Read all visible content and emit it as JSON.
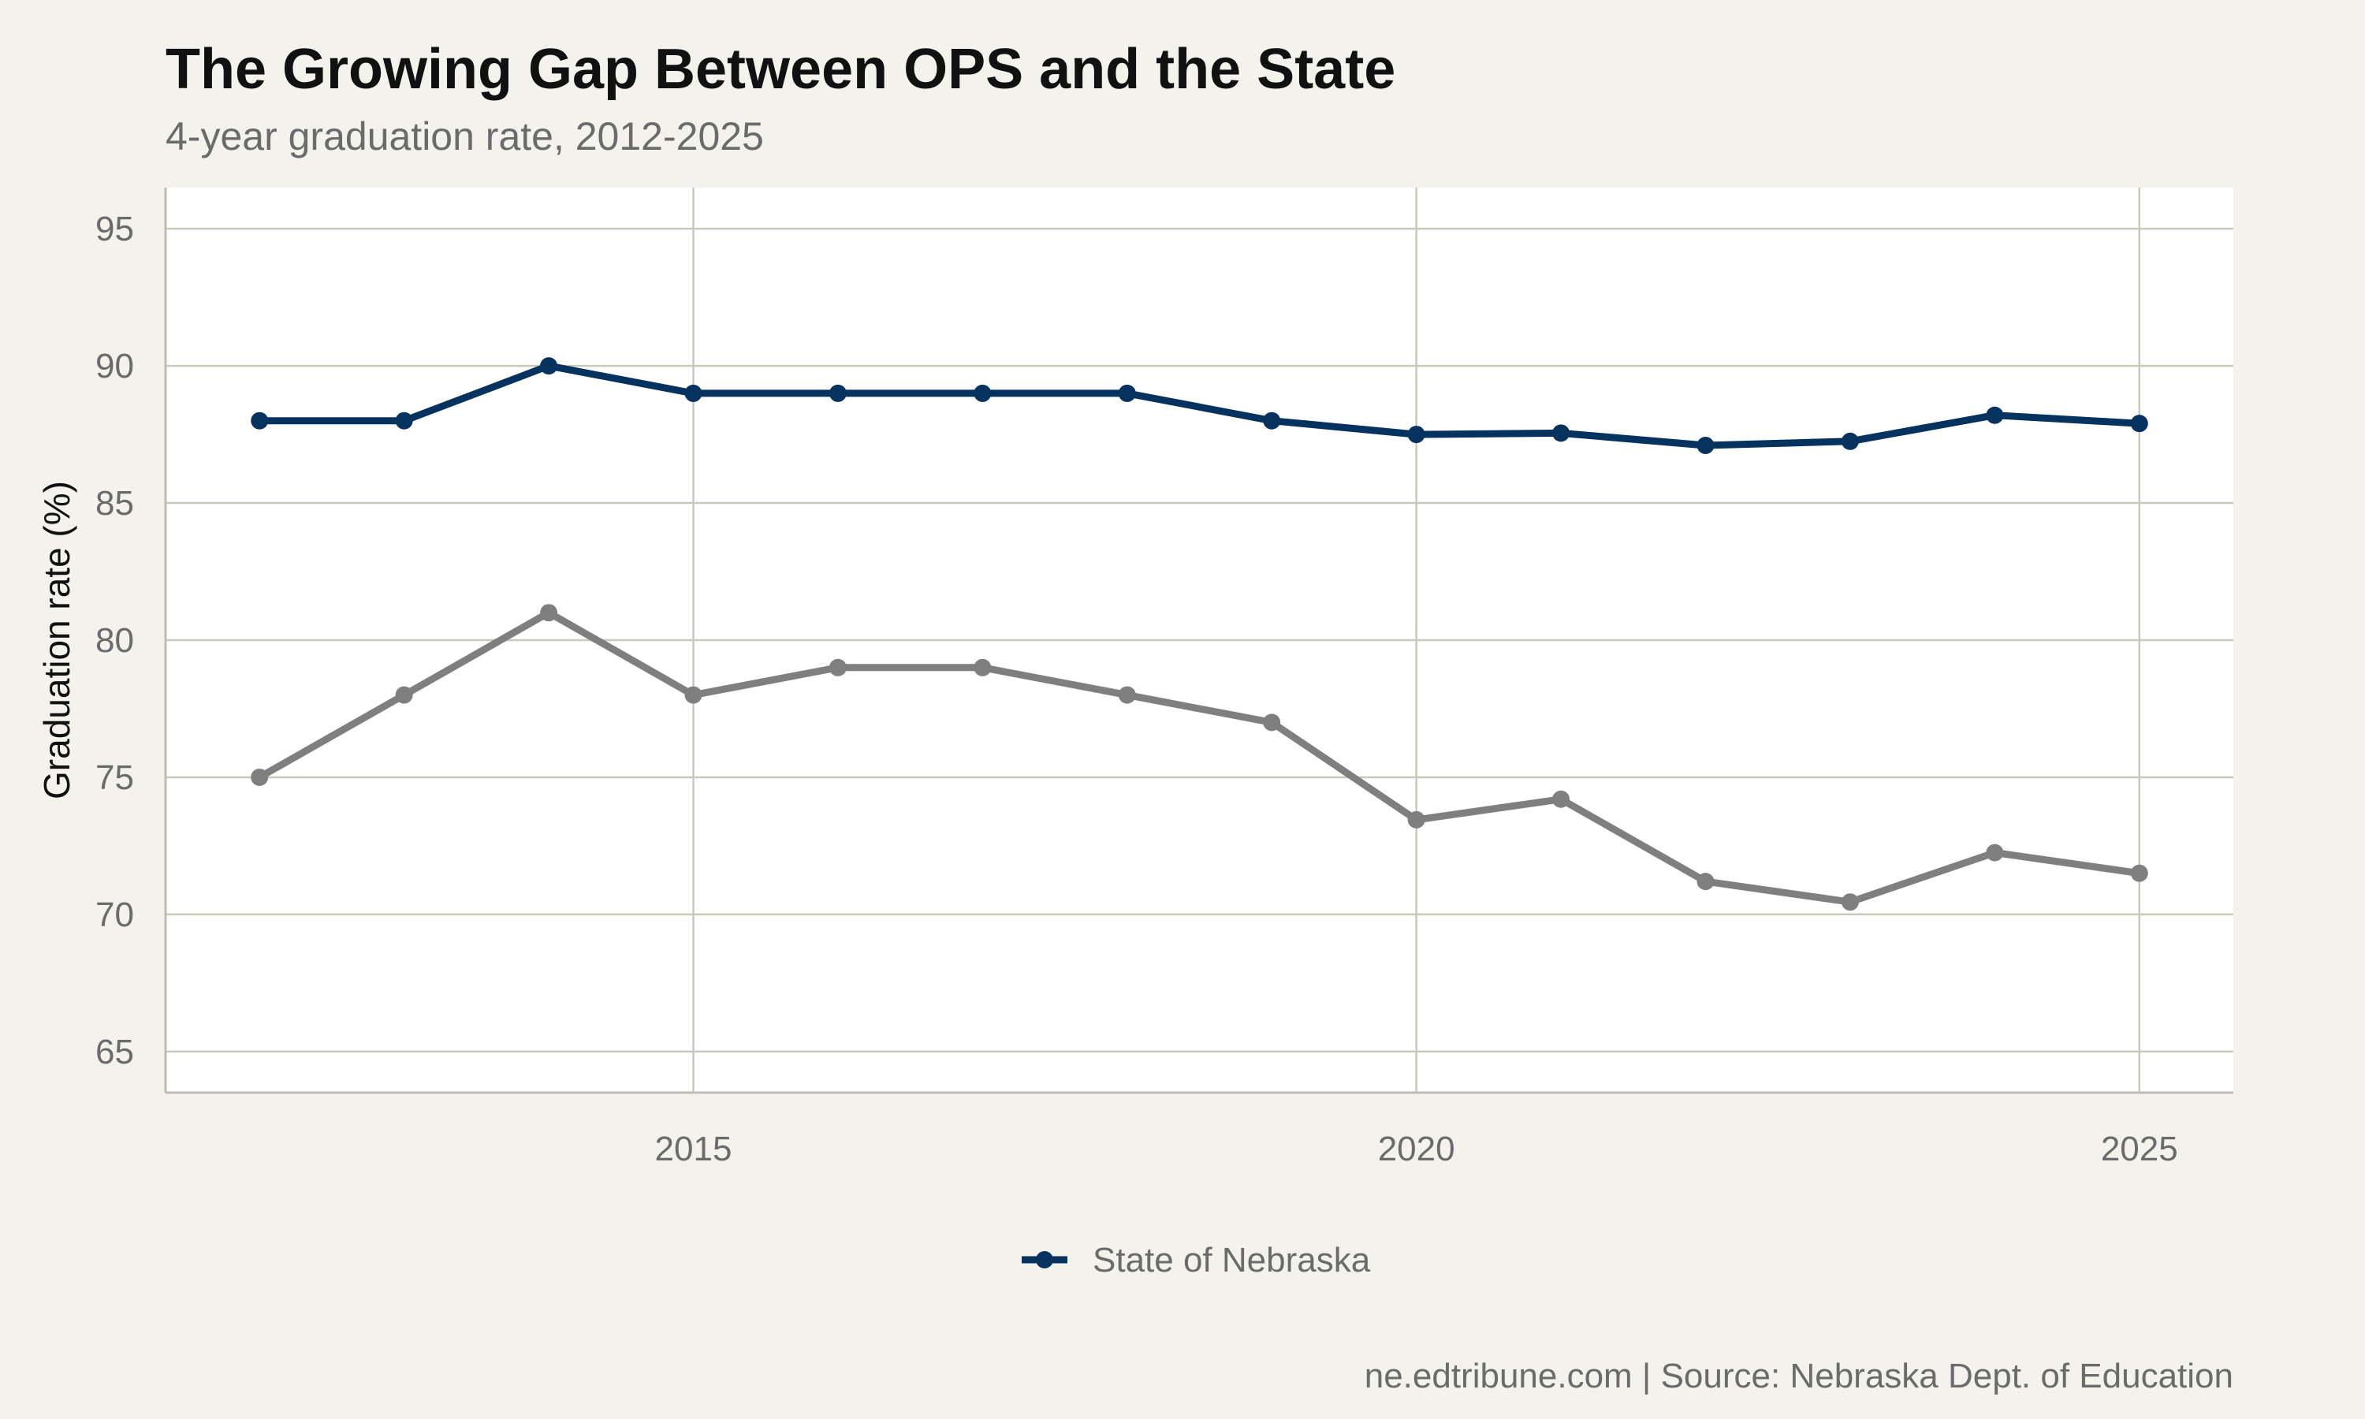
{
  "chart_data": {
    "type": "line",
    "title": "The Growing Gap Between OPS and the State",
    "subtitle": "4-year graduation rate, 2012-2025",
    "xlabel": "",
    "ylabel": "Graduation rate (%)",
    "x": [
      2012,
      2013,
      2014,
      2015,
      2016,
      2017,
      2018,
      2019,
      2020,
      2021,
      2022,
      2023,
      2024,
      2025
    ],
    "x_ticks": [
      2015,
      2020,
      2025
    ],
    "y_ticks": [
      65,
      70,
      75,
      80,
      85,
      90,
      95
    ],
    "xlim": [
      2011.35,
      2025.65
    ],
    "ylim": [
      63.5,
      96.5
    ],
    "grid": true,
    "series": [
      {
        "name": "State of Nebraska",
        "color": "#06325f",
        "in_legend": true,
        "values": [
          88,
          88,
          90,
          89,
          89,
          89,
          89,
          88,
          87.5,
          87.55,
          87.1,
          87.25,
          88.2,
          87.9
        ]
      },
      {
        "name": "",
        "color": "#7f7f7f",
        "in_legend": false,
        "values": [
          75,
          78,
          81,
          78,
          79,
          79,
          78,
          77,
          73.45,
          74.2,
          71.2,
          70.45,
          72.25,
          71.5
        ]
      }
    ],
    "legend_position": "bottom",
    "caption": "ne.edtribune.com | Source: Nebraska Dept. of Education"
  }
}
